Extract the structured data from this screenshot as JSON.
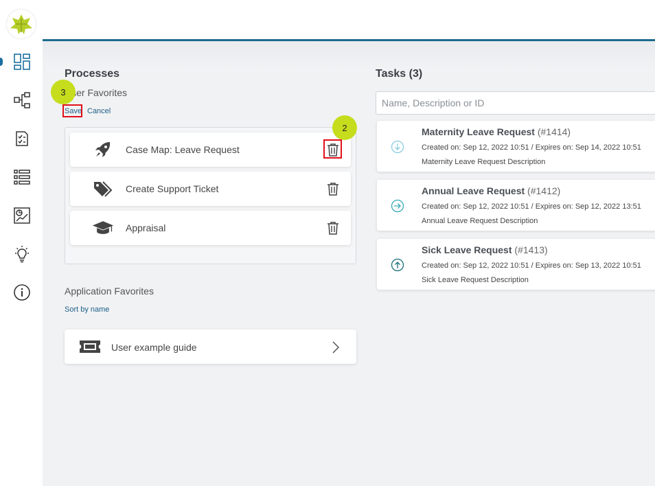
{
  "processes": {
    "title": "Processes",
    "user_favorites_label": "User Favorites",
    "save_label": "Save",
    "cancel_label": "Cancel",
    "items": [
      {
        "label": "Case Map: Leave Request",
        "icon": "rocket-icon"
      },
      {
        "label": "Create Support Ticket",
        "icon": "tags-icon"
      },
      {
        "label": "Appraisal",
        "icon": "graduation-cap-icon"
      }
    ],
    "application_favorites_label": "Application Favorites",
    "sort_by_name_label": "Sort by name",
    "app_items": [
      {
        "label": "User example guide",
        "icon": "ticket-icon"
      }
    ]
  },
  "tasks": {
    "title": "Tasks (3)",
    "search_placeholder": "Name, Description or ID",
    "items": [
      {
        "name": "Maternity Leave Request",
        "id": "(#1414)",
        "dates": "Created on: Sep 12, 2022 10:51 / Expires on: Sep 14, 2022 10:51",
        "description": "Maternity Leave Request Description",
        "icon": "arrow-down-circle-icon"
      },
      {
        "name": "Annual Leave Request",
        "id": "(#1412)",
        "dates": "Created on: Sep 12, 2022 10:51 / Expires on: Sep 12, 2022 13:51",
        "description": "Annual Leave Request Description",
        "icon": "arrow-right-circle-icon"
      },
      {
        "name": "Sick Leave Request",
        "id": "(#1413)",
        "dates": "Created on: Sep 12, 2022 10:51 / Expires on: Sep 13, 2022 10:51",
        "description": "Sick Leave Request Description",
        "icon": "arrow-up-circle-icon"
      }
    ]
  },
  "annotations": {
    "step_3": "3",
    "step_2": "2"
  },
  "sidebar": {
    "items": [
      {
        "icon": "dashboard-icon"
      },
      {
        "icon": "process-icon"
      },
      {
        "icon": "task-checklist-icon"
      },
      {
        "icon": "list-icon"
      },
      {
        "icon": "statistics-icon"
      },
      {
        "icon": "lightbulb-icon"
      },
      {
        "icon": "info-icon"
      }
    ]
  },
  "colors": {
    "accent": "#1b6a8e",
    "badge": "#c5dd1d",
    "highlight": "#e0101a"
  }
}
